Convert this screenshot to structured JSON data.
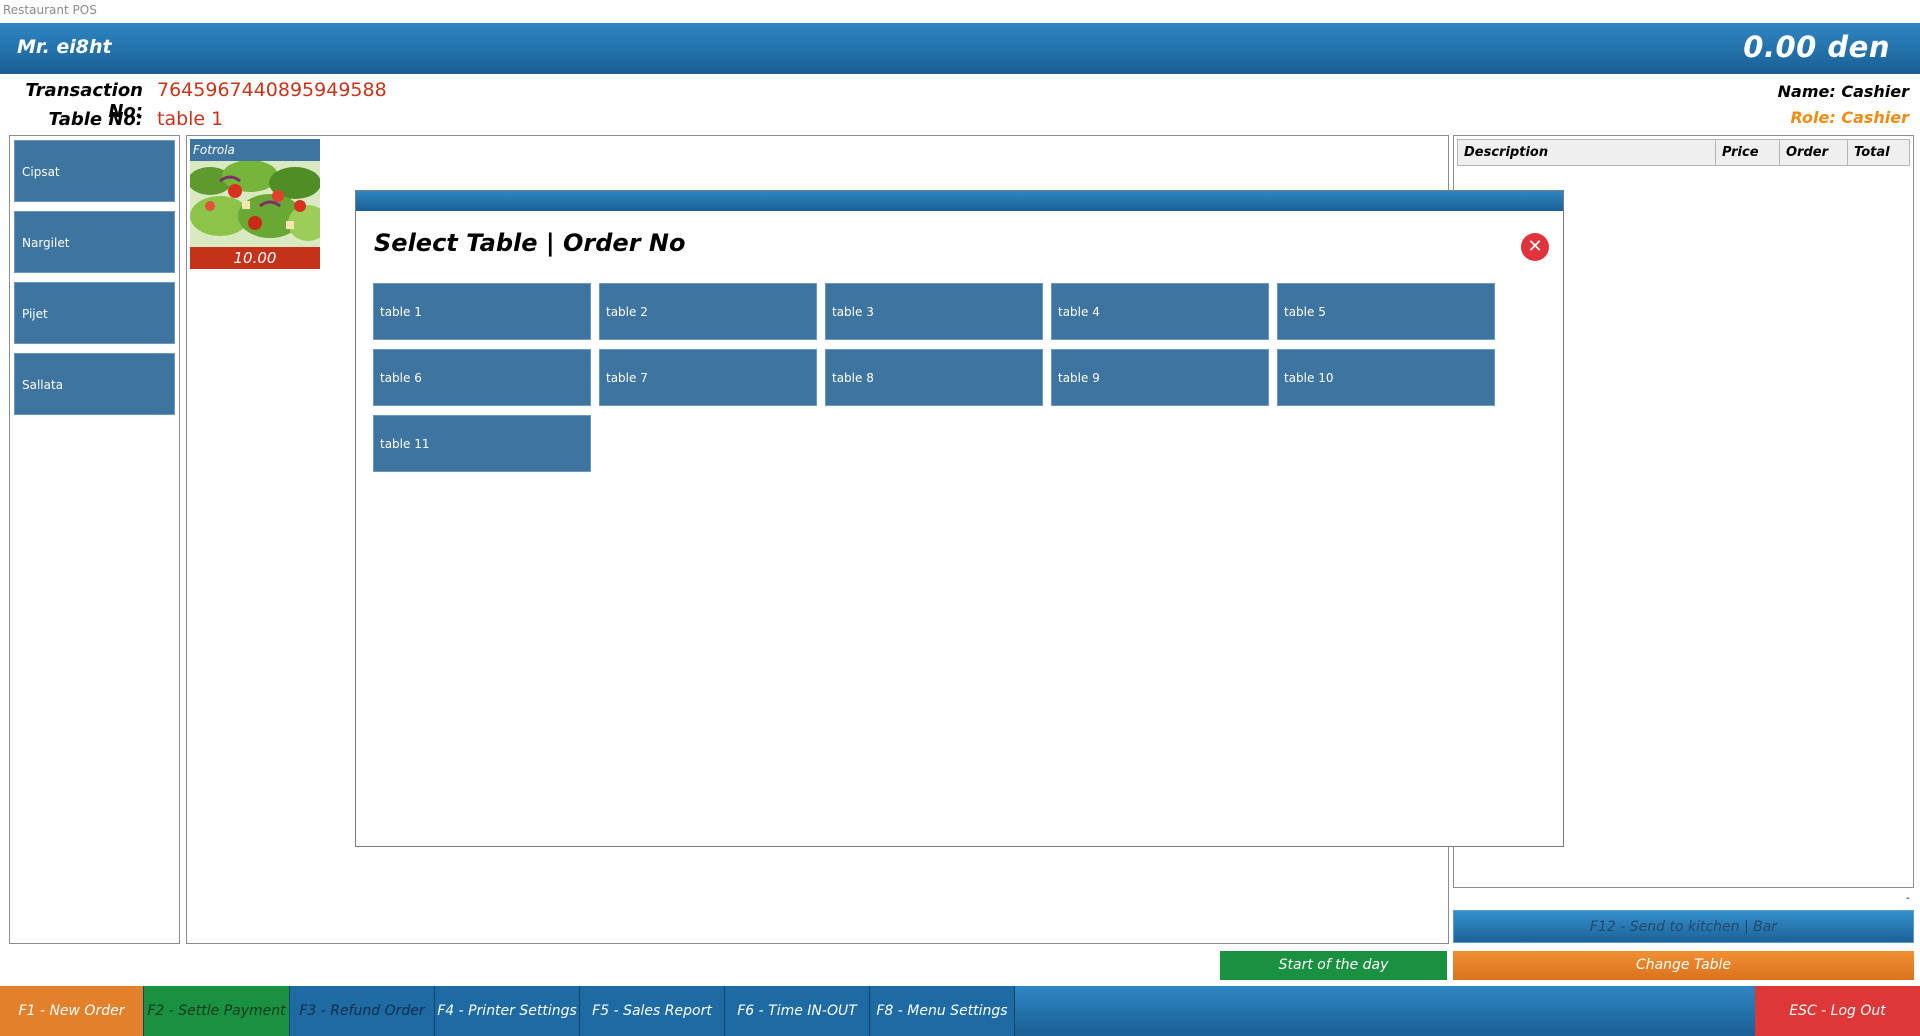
{
  "window": {
    "title": "Restaurant POS"
  },
  "header": {
    "restaurant": "Mr. ei8ht",
    "total": "0.00  den"
  },
  "info": {
    "transaction_label": "Transaction No:",
    "transaction_value": "7645967440895949588",
    "table_label": "Table No:",
    "table_value": "table 1",
    "name": "Name: Cashier",
    "role": "Role: Cashier"
  },
  "categories": [
    "Cipsat",
    "Nargilet",
    "Pijet",
    "Sallata"
  ],
  "product": {
    "name": "Fotrola",
    "price": "10.00"
  },
  "order": {
    "columns": [
      "Description",
      "Price",
      "Order",
      "Total"
    ],
    "dash": "-"
  },
  "actions": {
    "send_kitchen": "F12 - Send to kitchen | Bar",
    "start_day": "Start of the day",
    "change_table": "Change Table"
  },
  "function_keys": [
    {
      "label": "F1 - New Order",
      "color": "#e2802b"
    },
    {
      "label": "F2 - Settle Payment",
      "color": "#1a9041"
    },
    {
      "label": "F3 - Refund Order",
      "color": "#1e6aa3"
    },
    {
      "label": "F4 - Printer Settings",
      "color": "#1e6aa3"
    },
    {
      "label": "F5 - Sales Report",
      "color": "#1e6aa3"
    },
    {
      "label": "F6 - Time IN-OUT",
      "color": "#1e6aa3"
    },
    {
      "label": "F8 - Menu Settings",
      "color": "#1e6aa3"
    },
    {
      "label": "ESC - Log Out",
      "color": "#de3737"
    }
  ],
  "modal": {
    "title": "Select Table | Order No",
    "tables": [
      "table 1",
      "table 2",
      "table 3",
      "table 4",
      "table 5",
      "table 6",
      "table 7",
      "table 8",
      "table 9",
      "table 10",
      "table 11"
    ]
  },
  "colors": {
    "primary": "#1e6aa3",
    "tile": "#3e74a0",
    "price_red": "#c5321a",
    "accent_orange": "#ee8c14"
  }
}
